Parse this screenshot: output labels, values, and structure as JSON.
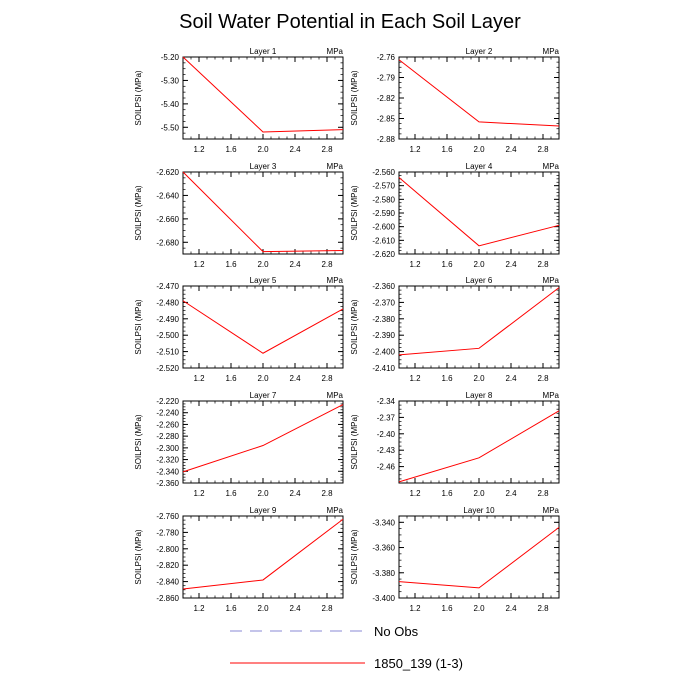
{
  "figure": {
    "title": "Soil Water Potential in Each Soil Layer"
  },
  "colors": {
    "series": "#ff0000",
    "no_obs": "#8a8ad6",
    "axis": "#000000"
  },
  "legend": [
    {
      "label": "No Obs",
      "style": "dashed",
      "color": "#8a8ad6"
    },
    {
      "label": "1850_139 (1-3)",
      "style": "solid",
      "color": "#ff0000"
    }
  ],
  "chart_data": [
    {
      "type": "line",
      "title": "Layer 1",
      "units": "MPa",
      "ylabel": "SOILPSI  (MPa)",
      "xlim": [
        1.0,
        3.0
      ],
      "xticks": [
        "1.2",
        "1.6",
        "2.0",
        "2.4",
        "2.8"
      ],
      "ylim": [
        -5.55,
        -5.2
      ],
      "yticks": [
        "-5.20",
        "-5.30",
        "-5.40",
        "-5.50"
      ],
      "x": [
        1.0,
        2.0,
        3.0
      ],
      "series": [
        {
          "name": "1850_139 (1-3)",
          "values": [
            -5.2,
            -5.52,
            -5.51
          ]
        }
      ]
    },
    {
      "type": "line",
      "title": "Layer 2",
      "units": "MPa",
      "ylabel": "SOILPSI  (MPa)",
      "xlim": [
        1.0,
        3.0
      ],
      "xticks": [
        "1.2",
        "1.6",
        "2.0",
        "2.4",
        "2.8"
      ],
      "ylim": [
        -2.88,
        -2.76
      ],
      "yticks": [
        "-2.76",
        "-2.79",
        "-2.82",
        "-2.85",
        "-2.88"
      ],
      "x": [
        1.0,
        2.0,
        3.0
      ],
      "series": [
        {
          "name": "1850_139 (1-3)",
          "values": [
            -2.764,
            -2.855,
            -2.861
          ]
        }
      ]
    },
    {
      "type": "line",
      "title": "Layer 3",
      "units": "MPa",
      "ylabel": "SOILPSI  (MPa)",
      "xlim": [
        1.0,
        3.0
      ],
      "xticks": [
        "1.2",
        "1.6",
        "2.0",
        "2.4",
        "2.8"
      ],
      "ylim": [
        -2.69,
        -2.62
      ],
      "yticks": [
        "-2.620",
        "-2.640",
        "-2.660",
        "-2.680"
      ],
      "x": [
        1.0,
        2.0,
        3.0
      ],
      "series": [
        {
          "name": "1850_139 (1-3)",
          "values": [
            -2.62,
            -2.688,
            -2.687
          ]
        }
      ]
    },
    {
      "type": "line",
      "title": "Layer 4",
      "units": "MPa",
      "ylabel": "SOILPSI  (MPa)",
      "xlim": [
        1.0,
        3.0
      ],
      "xticks": [
        "1.2",
        "1.6",
        "2.0",
        "2.4",
        "2.8"
      ],
      "ylim": [
        -2.62,
        -2.56
      ],
      "yticks": [
        "-2.560",
        "-2.570",
        "-2.580",
        "-2.590",
        "-2.600",
        "-2.610",
        "-2.620"
      ],
      "x": [
        1.0,
        2.0,
        3.0
      ],
      "series": [
        {
          "name": "1850_139 (1-3)",
          "values": [
            -2.564,
            -2.614,
            -2.599
          ]
        }
      ]
    },
    {
      "type": "line",
      "title": "Layer 5",
      "units": "MPa",
      "ylabel": "SOILPSI  (MPa)",
      "xlim": [
        1.0,
        3.0
      ],
      "xticks": [
        "1.2",
        "1.6",
        "2.0",
        "2.4",
        "2.8"
      ],
      "ylim": [
        -2.52,
        -2.47
      ],
      "yticks": [
        "-2.470",
        "-2.480",
        "-2.490",
        "-2.500",
        "-2.510",
        "-2.520"
      ],
      "x": [
        1.0,
        2.0,
        3.0
      ],
      "series": [
        {
          "name": "1850_139 (1-3)",
          "values": [
            -2.479,
            -2.511,
            -2.484
          ]
        }
      ]
    },
    {
      "type": "line",
      "title": "Layer 6",
      "units": "MPa",
      "ylabel": "SOILPSI  (MPa)",
      "xlim": [
        1.0,
        3.0
      ],
      "xticks": [
        "1.2",
        "1.6",
        "2.0",
        "2.4",
        "2.8"
      ],
      "ylim": [
        -2.41,
        -2.36
      ],
      "yticks": [
        "-2.360",
        "-2.370",
        "-2.380",
        "-2.390",
        "-2.400",
        "-2.410"
      ],
      "x": [
        1.0,
        2.0,
        3.0
      ],
      "series": [
        {
          "name": "1850_139 (1-3)",
          "values": [
            -2.402,
            -2.398,
            -2.361
          ]
        }
      ]
    },
    {
      "type": "line",
      "title": "Layer 7",
      "units": "MPa",
      "ylabel": "SOILPSI  (MPa)",
      "xlim": [
        1.0,
        3.0
      ],
      "xticks": [
        "1.2",
        "1.6",
        "2.0",
        "2.4",
        "2.8"
      ],
      "ylim": [
        -2.36,
        -2.22
      ],
      "yticks": [
        "-2.220",
        "-2.240",
        "-2.260",
        "-2.280",
        "-2.300",
        "-2.320",
        "-2.340",
        "-2.360"
      ],
      "x": [
        1.0,
        2.0,
        3.0
      ],
      "series": [
        {
          "name": "1850_139 (1-3)",
          "values": [
            -2.341,
            -2.296,
            -2.226
          ]
        }
      ]
    },
    {
      "type": "line",
      "title": "Layer 8",
      "units": "MPa",
      "ylabel": "SOILPSI  (MPa)",
      "xlim": [
        1.0,
        3.0
      ],
      "xticks": [
        "1.2",
        "1.6",
        "2.0",
        "2.4",
        "2.8"
      ],
      "ylim": [
        -2.49,
        -2.34
      ],
      "yticks": [
        "-2.34",
        "-2.37",
        "-2.40",
        "-2.43",
        "-2.46"
      ],
      "x": [
        1.0,
        2.0,
        3.0
      ],
      "series": [
        {
          "name": "1850_139 (1-3)",
          "values": [
            -2.488,
            -2.444,
            -2.358
          ]
        }
      ]
    },
    {
      "type": "line",
      "title": "Layer 9",
      "units": "MPa",
      "ylabel": "SOILPSI  (MPa)",
      "xlim": [
        1.0,
        3.0
      ],
      "xticks": [
        "1.2",
        "1.6",
        "2.0",
        "2.4",
        "2.8"
      ],
      "ylim": [
        -2.86,
        -2.76
      ],
      "yticks": [
        "-2.760",
        "-2.780",
        "-2.800",
        "-2.820",
        "-2.840",
        "-2.860"
      ],
      "x": [
        1.0,
        2.0,
        3.0
      ],
      "series": [
        {
          "name": "1850_139 (1-3)",
          "values": [
            -2.849,
            -2.838,
            -2.764
          ]
        }
      ]
    },
    {
      "type": "line",
      "title": "Layer 10",
      "units": "MPa",
      "ylabel": "SOILPSI  (MPa)",
      "xlim": [
        1.0,
        3.0
      ],
      "xticks": [
        "1.2",
        "1.6",
        "2.0",
        "2.4",
        "2.8"
      ],
      "ylim": [
        -3.4,
        -3.335
      ],
      "yticks": [
        "-3.340",
        "-3.360",
        "-3.380",
        "-3.400"
      ],
      "x": [
        1.0,
        2.0,
        3.0
      ],
      "series": [
        {
          "name": "1850_139 (1-3)",
          "values": [
            -3.387,
            -3.392,
            -3.344
          ]
        }
      ]
    }
  ]
}
